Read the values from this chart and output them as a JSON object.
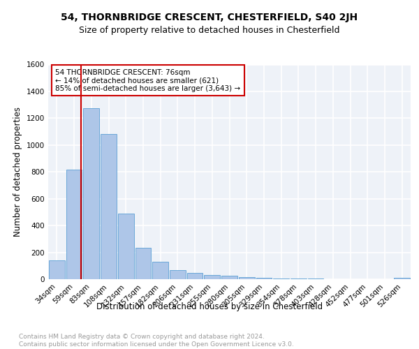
{
  "title1": "54, THORNBRIDGE CRESCENT, CHESTERFIELD, S40 2JH",
  "title2": "Size of property relative to detached houses in Chesterfield",
  "xlabel": "Distribution of detached houses by size in Chesterfield",
  "ylabel": "Number of detached properties",
  "bar_labels": [
    "34sqm",
    "59sqm",
    "83sqm",
    "108sqm",
    "132sqm",
    "157sqm",
    "182sqm",
    "206sqm",
    "231sqm",
    "255sqm",
    "280sqm",
    "305sqm",
    "329sqm",
    "354sqm",
    "378sqm",
    "403sqm",
    "428sqm",
    "452sqm",
    "477sqm",
    "501sqm",
    "526sqm"
  ],
  "bar_values": [
    140,
    815,
    1275,
    1080,
    490,
    235,
    130,
    70,
    47,
    32,
    25,
    17,
    10,
    6,
    4,
    3,
    2,
    1,
    1,
    1,
    10
  ],
  "bar_color": "#aec6e8",
  "bar_edge_color": "#5a9fd4",
  "vline_color": "#cc0000",
  "annotation_text": "54 THORNBRIDGE CRESCENT: 76sqm\n← 14% of detached houses are smaller (621)\n85% of semi-detached houses are larger (3,643) →",
  "annotation_box_color": "#ffffff",
  "annotation_box_edge": "#cc0000",
  "ylim": [
    0,
    1600
  ],
  "yticks": [
    0,
    200,
    400,
    600,
    800,
    1000,
    1200,
    1400,
    1600
  ],
  "footer": "Contains HM Land Registry data © Crown copyright and database right 2024.\nContains public sector information licensed under the Open Government Licence v3.0.",
  "bg_color": "#eef2f8",
  "grid_color": "#ffffff",
  "title1_fontsize": 10,
  "title2_fontsize": 9,
  "axis_label_fontsize": 8.5,
  "tick_fontsize": 7.5,
  "annotation_fontsize": 7.5,
  "footer_fontsize": 6.5
}
